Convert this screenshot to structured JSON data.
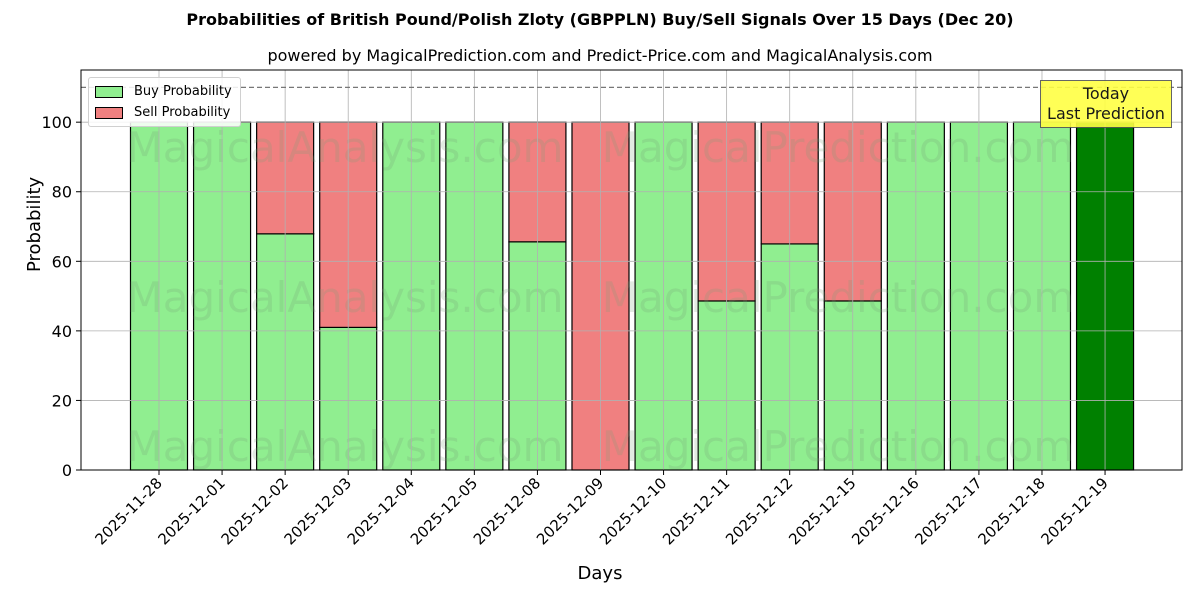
{
  "header": {
    "title": "Probabilities of British Pound/Polish Zloty (GBPPLN) Buy/Sell Signals Over 15 Days (Dec 20)",
    "subtitle": "powered by MagicalPrediction.com and Predict-Price.com and MagicalAnalysis.com"
  },
  "legend": {
    "buy_label": "Buy Probability",
    "sell_label": "Sell Probability"
  },
  "annotation": {
    "line1": "Today",
    "line2": "Last Prediction"
  },
  "axes": {
    "xlabel": "Days",
    "ylabel": "Probability",
    "yticks": [
      0,
      20,
      40,
      60,
      80,
      100
    ]
  },
  "watermarks": [
    "MagicalAnalysis.com",
    "MagicalPrediction.com"
  ],
  "colors": {
    "buy": "#90ee90",
    "sell": "#f08080",
    "today_buy": "#008000",
    "annotation_bg": "#ffff44"
  },
  "chart_data": {
    "type": "bar",
    "stacked": true,
    "title": "Probabilities of British Pound/Polish Zloty (GBPPLN) Buy/Sell Signals Over 15 Days (Dec 20)",
    "subtitle": "powered by MagicalPrediction.com and Predict-Price.com and MagicalAnalysis.com",
    "xlabel": "Days",
    "ylabel": "Probability",
    "ylim": [
      0,
      115
    ],
    "dashed_reference_line": 110,
    "grid": true,
    "legend_position": "upper left",
    "categories": [
      "2025-11-28",
      "2025-12-01",
      "2025-12-02",
      "2025-12-03",
      "2025-12-04",
      "2025-12-05",
      "2025-12-08",
      "2025-12-09",
      "2025-12-10",
      "2025-12-11",
      "2025-12-12",
      "2025-12-15",
      "2025-12-16",
      "2025-12-17",
      "2025-12-18",
      "2025-12-19"
    ],
    "series": [
      {
        "name": "Buy Probability",
        "values": [
          100,
          100,
          67.9,
          41.0,
          100,
          100,
          65.6,
          0,
          100,
          48.6,
          65.0,
          48.6,
          100,
          100,
          100,
          100
        ]
      },
      {
        "name": "Sell Probability",
        "values": [
          0,
          0,
          32.1,
          59.0,
          0,
          0,
          34.4,
          100,
          0,
          51.4,
          35.0,
          51.4,
          0,
          0,
          0,
          0
        ]
      }
    ],
    "annotations": [
      {
        "text": "Today\nLast Prediction",
        "x": "2025-12-19"
      }
    ]
  }
}
